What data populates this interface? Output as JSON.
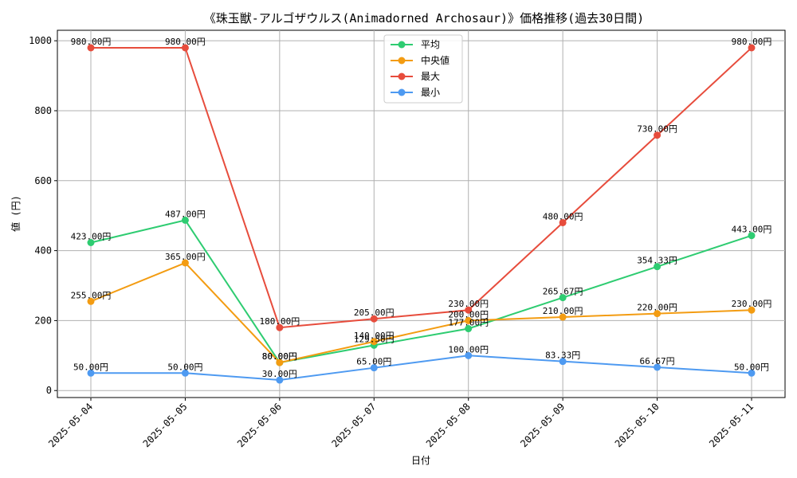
{
  "chart_data": {
    "type": "line",
    "title": "《珠玉獣-アルゴザウルス(Animadorned Archosaur)》価格推移(過去30日間)",
    "xlabel": "日付",
    "ylabel": "値 (円)",
    "categories": [
      "2025-05-04",
      "2025-05-05",
      "2025-05-06",
      "2025-05-07",
      "2025-05-08",
      "2025-05-09",
      "2025-05-10",
      "2025-05-11"
    ],
    "ylim": [
      -20,
      1030
    ],
    "yticks": [
      0,
      200,
      400,
      600,
      800,
      1000
    ],
    "grid": true,
    "legend_position": "top-center",
    "value_suffix": "円",
    "series": [
      {
        "name": "平均",
        "color": "#2ecc71",
        "values": [
          423.0,
          487.0,
          80.0,
          129.5,
          177.0,
          265.67,
          354.33,
          443.0
        ],
        "labels": [
          "423.00円",
          "487.00円",
          "80.00円",
          "129.50円",
          "177.00円",
          "265.67円",
          "354.33円",
          "443.00円"
        ]
      },
      {
        "name": "中央値",
        "color": "#f39c12",
        "values": [
          255.0,
          365.0,
          80.0,
          140.0,
          200.0,
          210.0,
          220.0,
          230.0
        ],
        "labels": [
          "255.00円",
          "365.00円",
          "80.00円",
          "140.00円",
          "200.00円",
          "210.00円",
          "220.00円",
          "230.00円"
        ]
      },
      {
        "name": "最大",
        "color": "#e74c3c",
        "values": [
          980.0,
          980.0,
          180.0,
          205.0,
          230.0,
          480.0,
          730.0,
          980.0
        ],
        "labels": [
          "980.00円",
          "980.00円",
          "180.00円",
          "205.00円",
          "230.00円",
          "480.00円",
          "730.00円",
          "980.00円"
        ]
      },
      {
        "name": "最小",
        "color": "#4e9af1",
        "values": [
          50.0,
          50.0,
          30.0,
          65.0,
          100.0,
          83.33,
          66.67,
          50.0
        ],
        "labels": [
          "50.00円",
          "50.00円",
          "30.00円",
          "65.00円",
          "100.00円",
          "83.33円",
          "66.67円",
          "50.00円"
        ]
      }
    ]
  }
}
